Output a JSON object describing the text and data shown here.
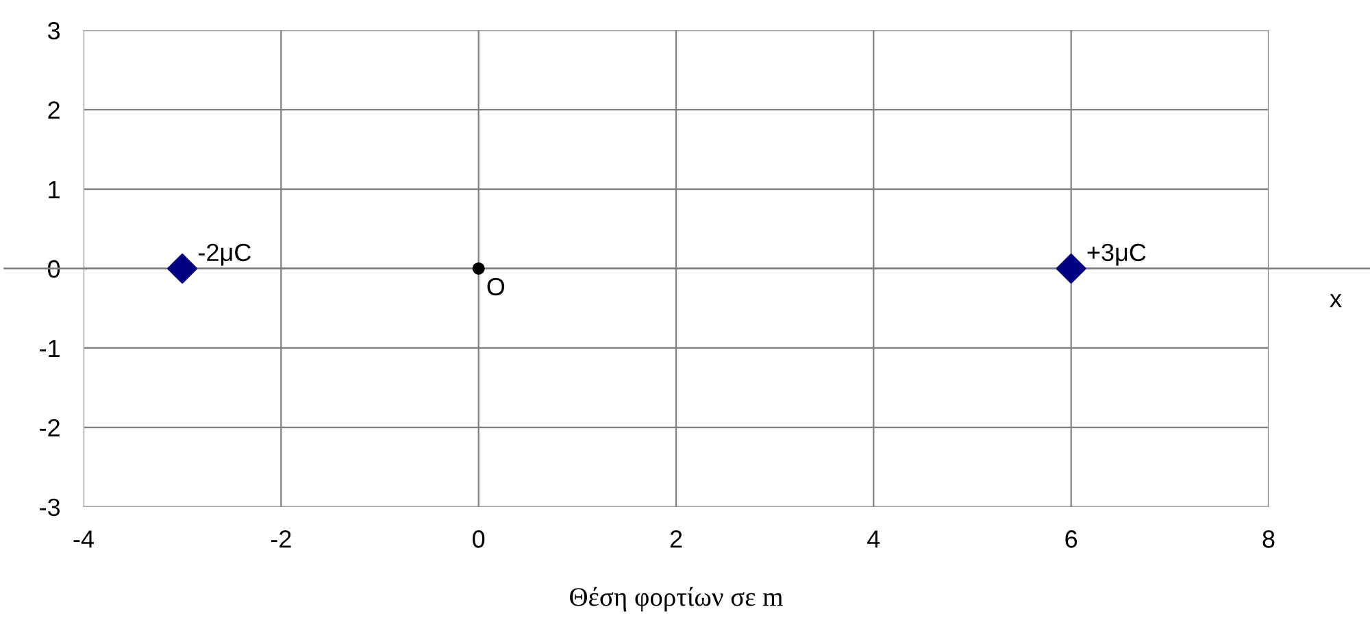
{
  "chart_data": {
    "type": "scatter",
    "xlabel": "Θέση φορτίων σε m",
    "series": [
      {
        "x": [
          -3,
          6
        ],
        "values": [
          0,
          0
        ],
        "color": "#000080",
        "marker": "diamond"
      },
      {
        "x": [
          0
        ],
        "values": [
          0
        ],
        "color": "#000000",
        "marker": "circle"
      }
    ],
    "annotations": [
      {
        "text": "-2μC",
        "x": -3,
        "y": 0
      },
      {
        "text": "+3μC",
        "x": 6,
        "y": 0
      },
      {
        "text": "O",
        "x": 0,
        "y": 0
      },
      "x"
    ],
    "xlim": [
      -4,
      8
    ],
    "xticks": [
      -4,
      -2,
      0,
      2,
      4,
      6,
      8
    ],
    "ylim": [
      -3,
      3
    ],
    "yticks": [
      -3,
      -2,
      -1,
      0,
      1,
      2,
      3
    ],
    "ref_lines": [
      {
        "axis": "y",
        "value": 0,
        "color": "#808080"
      }
    ],
    "grid": true
  }
}
